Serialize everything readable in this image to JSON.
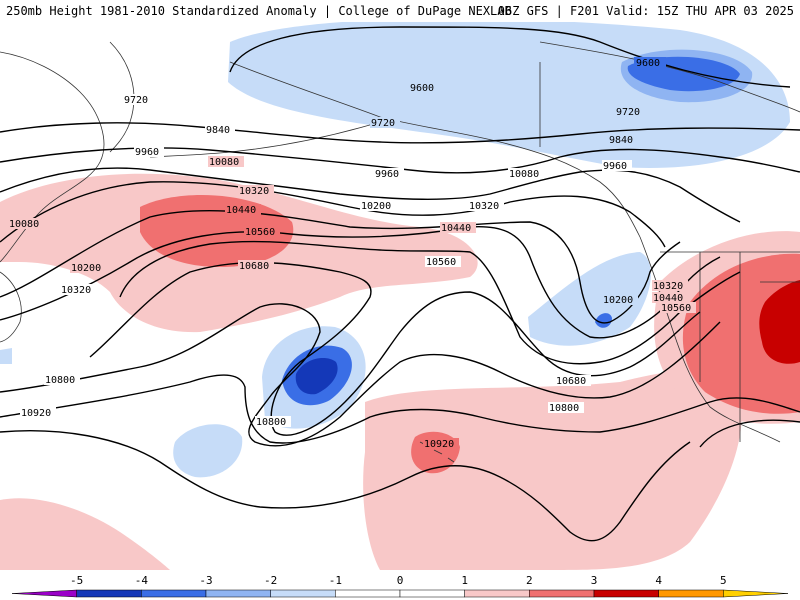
{
  "header": {
    "left": "250mb Height 1981-2010 Standardized Anomaly | College of DuPage NEXLAB",
    "right": "06Z GFS | F201 Valid: 15Z THU APR 03 2025"
  },
  "contours": [
    {
      "value": 9600,
      "labels": [
        "9600",
        "9600"
      ]
    },
    {
      "value": 9720,
      "labels": [
        "9720",
        "9720",
        "9720"
      ]
    },
    {
      "value": 9840,
      "labels": [
        "9840",
        "9840"
      ]
    },
    {
      "value": 9960,
      "labels": [
        "9960",
        "9960",
        "9960"
      ]
    },
    {
      "value": 10080,
      "labels": [
        "10080",
        "10080",
        "10080"
      ]
    },
    {
      "value": 10200,
      "labels": [
        "10200",
        "10200",
        "10200"
      ]
    },
    {
      "value": 10320,
      "labels": [
        "10320",
        "10320",
        "10320",
        "10320"
      ]
    },
    {
      "value": 10440,
      "labels": [
        "10440",
        "10440",
        "10440"
      ]
    },
    {
      "value": 10560,
      "labels": [
        "10560",
        "10560",
        "10560"
      ]
    },
    {
      "value": 10680,
      "labels": [
        "10680",
        "10680"
      ]
    },
    {
      "value": 10800,
      "labels": [
        "10800",
        "10800",
        "10800"
      ]
    },
    {
      "value": 10920,
      "labels": [
        "10920",
        "10920"
      ]
    }
  ],
  "colorbar": {
    "ticks": [
      "-5",
      "-4",
      "-3",
      "-2",
      "-1",
      "0",
      "1",
      "2",
      "3",
      "4",
      "5"
    ],
    "colors": [
      "#9a00c8",
      "#1438b8",
      "#3a6ee6",
      "#8fb4f2",
      "#c6dcf8",
      "#ffffff",
      "#ffffff",
      "#f8c8c8",
      "#f07070",
      "#c80000",
      "#ff9800",
      "#ffd000"
    ]
  },
  "anomaly_colors": {
    "neg_weak": "#c6dcf8",
    "neg_mod": "#8fb4f2",
    "neg_strong": "#3a6ee6",
    "neg_xstrong": "#1438b8",
    "pos_weak": "#f8c8c8",
    "pos_mod": "#f07070",
    "pos_strong": "#c80000"
  }
}
